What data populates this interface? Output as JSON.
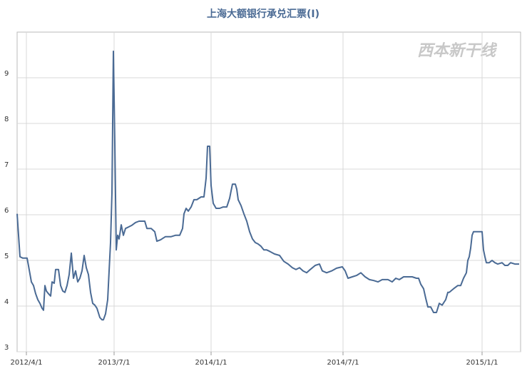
{
  "chart_data": {
    "type": "line",
    "title": "上海大额银行承兑汇票(Ⅰ)",
    "watermark": "西本新干线",
    "x": [
      0,
      4,
      8,
      14,
      16,
      20,
      23,
      26,
      29,
      32,
      35,
      37,
      39,
      41,
      44,
      47,
      49,
      52,
      54,
      58,
      61,
      64,
      67,
      70,
      73,
      76,
      79,
      82,
      85,
      88,
      91,
      94,
      97,
      100,
      103,
      106,
      109,
      112,
      116,
      119,
      121,
      124,
      127,
      129,
      131,
      133,
      135,
      137,
      139,
      141,
      143,
      146,
      149,
      152,
      156,
      161,
      166,
      171,
      179,
      182,
      188,
      193,
      196,
      201,
      208,
      216,
      222,
      228,
      232,
      234,
      237,
      240,
      244,
      248,
      252,
      258,
      262,
      265,
      267,
      270,
      272,
      275,
      279,
      284,
      289,
      294,
      298,
      300,
      302,
      306,
      308,
      310,
      314,
      318,
      322,
      326,
      330,
      334,
      338,
      342,
      346,
      350,
      354,
      361,
      368,
      374,
      380,
      386,
      391,
      396,
      401,
      406,
      411,
      418,
      424,
      428,
      434,
      441,
      448,
      456,
      460,
      464,
      470,
      476,
      482,
      488,
      494,
      500,
      506,
      512,
      520,
      526,
      531,
      536,
      542,
      548,
      554,
      560,
      563,
      566,
      570,
      573,
      576,
      580,
      584,
      588,
      592,
      596,
      601,
      604,
      606,
      612,
      618,
      622,
      626,
      630,
      632,
      634,
      636,
      638,
      640,
      652,
      654,
      656,
      658,
      662,
      666,
      670,
      674,
      680,
      684,
      688,
      692,
      698,
      704
    ],
    "series": [
      {
        "name": "上海大额银行承兑汇票(Ⅰ)",
        "color": "#4a6a94",
        "values": [
          6.02,
          5.08,
          5.05,
          5.05,
          4.88,
          4.53,
          4.45,
          4.27,
          4.14,
          4.06,
          3.95,
          3.91,
          4.45,
          4.33,
          4.27,
          4.22,
          4.53,
          4.5,
          4.8,
          4.8,
          4.45,
          4.33,
          4.3,
          4.45,
          4.69,
          5.16,
          4.61,
          4.77,
          4.53,
          4.61,
          4.77,
          5.11,
          4.84,
          4.69,
          4.3,
          4.06,
          4.02,
          3.95,
          3.75,
          3.7,
          3.7,
          3.83,
          4.14,
          4.77,
          5.39,
          6.48,
          9.58,
          7.58,
          5.23,
          5.55,
          5.47,
          5.78,
          5.55,
          5.7,
          5.73,
          5.77,
          5.83,
          5.86,
          5.86,
          5.7,
          5.7,
          5.63,
          5.42,
          5.45,
          5.52,
          5.52,
          5.55,
          5.55,
          5.7,
          6.02,
          6.14,
          6.08,
          6.17,
          6.33,
          6.33,
          6.39,
          6.39,
          6.8,
          7.5,
          7.5,
          6.64,
          6.25,
          6.14,
          6.14,
          6.17,
          6.17,
          6.36,
          6.52,
          6.67,
          6.67,
          6.56,
          6.33,
          6.2,
          6.02,
          5.86,
          5.63,
          5.47,
          5.39,
          5.36,
          5.31,
          5.23,
          5.23,
          5.2,
          5.14,
          5.11,
          4.98,
          4.92,
          4.84,
          4.8,
          4.84,
          4.77,
          4.73,
          4.8,
          4.89,
          4.92,
          4.77,
          4.73,
          4.77,
          4.83,
          4.86,
          4.77,
          4.61,
          4.64,
          4.67,
          4.73,
          4.64,
          4.58,
          4.56,
          4.53,
          4.58,
          4.58,
          4.53,
          4.61,
          4.58,
          4.64,
          4.64,
          4.64,
          4.61,
          4.61,
          4.48,
          4.38,
          4.17,
          3.98,
          3.98,
          3.86,
          3.86,
          4.06,
          4.02,
          4.14,
          4.3,
          4.3,
          4.38,
          4.45,
          4.45,
          4.61,
          4.73,
          5.0,
          5.08,
          5.27,
          5.55,
          5.63,
          5.63,
          5.23,
          5.08,
          4.95,
          4.95,
          5.0,
          4.95,
          4.92,
          4.95,
          4.89,
          4.89,
          4.95,
          4.92,
          4.92
        ]
      }
    ],
    "xlim": [
      0,
      706
    ],
    "xticks": [
      {
        "value": 13,
        "label": "2012/4/1"
      },
      {
        "value": 136,
        "label": "2013/7/1"
      },
      {
        "value": 272,
        "label": "2014/1/1"
      },
      {
        "value": 457,
        "label": "2014/7/1"
      },
      {
        "value": 652,
        "label": "2015/1/1"
      }
    ],
    "ylim": [
      3,
      10
    ],
    "yticks": [
      3,
      4,
      5,
      6,
      7,
      8,
      9
    ],
    "grid": true
  }
}
